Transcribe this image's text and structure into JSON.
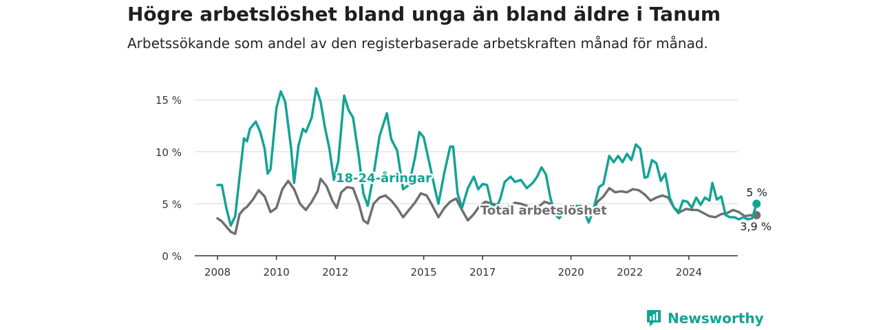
{
  "header": {
    "title": "Högre arbetslöshet bland unga än bland äldre i Tanum",
    "subtitle": "Arbetssökande som andel av den registerbaserade arbetskraften månad för månad."
  },
  "brand": {
    "name": "Newsworthy",
    "icon": "newsworthy-logo-icon",
    "color": "#13a394"
  },
  "chart_data": {
    "type": "line",
    "title": "Högre arbetslöshet bland unga än bland äldre i Tanum",
    "subtitle": "Arbetssökande som andel av den registerbaserade arbetskraften månad för månad.",
    "xlabel": "",
    "ylabel": "",
    "xlim": [
      2007.7,
      2025.5
    ],
    "ylim": [
      0,
      16
    ],
    "yticks": [
      0,
      5,
      10,
      15
    ],
    "ytick_labels": [
      "0 %",
      "5 %",
      "10 %",
      "15 %"
    ],
    "xticks": [
      2008,
      2010,
      2012,
      2015,
      2017,
      2020,
      2022,
      2024
    ],
    "xtick_labels": [
      "2008",
      "2010",
      "2012",
      "2015",
      "2017",
      "2020",
      "2022",
      "2024"
    ],
    "grid": "horizontal",
    "legend": "inline labels",
    "series": [
      {
        "name": "18-24-åringar",
        "color": "#13a394",
        "end_label": "5 %",
        "points": [
          [
            2008.0,
            6.8
          ],
          [
            2008.15,
            6.8
          ],
          [
            2008.3,
            4.6
          ],
          [
            2008.45,
            2.9
          ],
          [
            2008.6,
            3.8
          ],
          [
            2008.75,
            7.6
          ],
          [
            2008.9,
            11.3
          ],
          [
            2009.0,
            11.0
          ],
          [
            2009.1,
            12.2
          ],
          [
            2009.3,
            12.9
          ],
          [
            2009.45,
            11.9
          ],
          [
            2009.6,
            10.3
          ],
          [
            2009.7,
            7.9
          ],
          [
            2009.8,
            8.3
          ],
          [
            2010.0,
            14.2
          ],
          [
            2010.15,
            15.8
          ],
          [
            2010.3,
            14.8
          ],
          [
            2010.5,
            10.3
          ],
          [
            2010.6,
            7.0
          ],
          [
            2010.75,
            10.6
          ],
          [
            2010.9,
            12.2
          ],
          [
            2011.0,
            11.9
          ],
          [
            2011.2,
            13.3
          ],
          [
            2011.35,
            16.1
          ],
          [
            2011.5,
            14.8
          ],
          [
            2011.65,
            12.3
          ],
          [
            2011.8,
            10.3
          ],
          [
            2011.95,
            7.3
          ],
          [
            2012.1,
            9.1
          ],
          [
            2012.3,
            15.4
          ],
          [
            2012.45,
            14.0
          ],
          [
            2012.6,
            13.3
          ],
          [
            2012.8,
            9.5
          ],
          [
            2012.95,
            6.0
          ],
          [
            2013.1,
            4.8
          ],
          [
            2013.3,
            7.8
          ],
          [
            2013.5,
            11.5
          ],
          [
            2013.75,
            13.7
          ],
          [
            2013.9,
            11.2
          ],
          [
            2014.1,
            10.1
          ],
          [
            2014.3,
            6.4
          ],
          [
            2014.5,
            6.8
          ],
          [
            2014.7,
            9.4
          ],
          [
            2014.85,
            11.9
          ],
          [
            2015.0,
            11.4
          ],
          [
            2015.2,
            8.8
          ],
          [
            2015.4,
            6.2
          ],
          [
            2015.5,
            5.0
          ],
          [
            2015.7,
            8.0
          ],
          [
            2015.9,
            10.5
          ],
          [
            2016.0,
            10.5
          ],
          [
            2016.15,
            6.0
          ],
          [
            2016.3,
            4.6
          ],
          [
            2016.5,
            6.5
          ],
          [
            2016.7,
            7.6
          ],
          [
            2016.85,
            6.4
          ],
          [
            2017.0,
            6.9
          ],
          [
            2017.15,
            6.8
          ],
          [
            2017.3,
            5.0
          ],
          [
            2017.45,
            4.5
          ],
          [
            2017.6,
            5.5
          ],
          [
            2017.75,
            7.1
          ],
          [
            2017.95,
            7.6
          ],
          [
            2018.1,
            7.1
          ],
          [
            2018.3,
            7.3
          ],
          [
            2018.5,
            6.5
          ],
          [
            2018.7,
            7.0
          ],
          [
            2018.85,
            7.6
          ],
          [
            2019.0,
            8.5
          ],
          [
            2019.15,
            7.8
          ],
          [
            2019.3,
            5.6
          ],
          [
            2019.45,
            4.0
          ],
          [
            2019.6,
            3.6
          ],
          [
            2019.8,
            4.4
          ],
          [
            2020.0,
            4.2
          ],
          [
            2020.2,
            4.8
          ],
          [
            2020.4,
            4.6
          ],
          [
            2020.6,
            3.2
          ],
          [
            2020.75,
            4.3
          ],
          [
            2020.95,
            6.6
          ],
          [
            2021.1,
            6.9
          ],
          [
            2021.3,
            9.6
          ],
          [
            2021.45,
            9.0
          ],
          [
            2021.6,
            9.6
          ],
          [
            2021.75,
            9.0
          ],
          [
            2021.9,
            9.8
          ],
          [
            2022.05,
            9.2
          ],
          [
            2022.2,
            10.7
          ],
          [
            2022.35,
            10.3
          ],
          [
            2022.5,
            7.5
          ],
          [
            2022.6,
            7.6
          ],
          [
            2022.75,
            9.2
          ],
          [
            2022.9,
            8.9
          ],
          [
            2023.05,
            7.2
          ],
          [
            2023.2,
            7.9
          ],
          [
            2023.35,
            5.6
          ],
          [
            2023.5,
            4.6
          ],
          [
            2023.65,
            4.1
          ],
          [
            2023.8,
            5.3
          ],
          [
            2023.95,
            5.2
          ],
          [
            2024.1,
            4.6
          ],
          [
            2024.25,
            5.6
          ],
          [
            2024.4,
            4.9
          ],
          [
            2024.55,
            5.6
          ],
          [
            2024.7,
            5.3
          ],
          [
            2024.8,
            7.0
          ],
          [
            2024.95,
            5.4
          ],
          [
            2025.1,
            5.7
          ],
          [
            2025.25,
            3.9
          ],
          [
            2025.4,
            3.7
          ],
          [
            2025.55,
            3.7
          ],
          [
            2025.7,
            3.5
          ],
          [
            2025.85,
            3.7
          ],
          [
            2026.0,
            3.5
          ],
          [
            2026.15,
            3.6
          ],
          [
            2026.3,
            5.0
          ]
        ]
      },
      {
        "name": "Total arbetslöshet",
        "color": "#6e6e73",
        "end_label": "3,9 %",
        "points": [
          [
            2008.0,
            3.6
          ],
          [
            2008.15,
            3.3
          ],
          [
            2008.3,
            2.8
          ],
          [
            2008.45,
            2.3
          ],
          [
            2008.6,
            2.1
          ],
          [
            2008.75,
            4.0
          ],
          [
            2008.9,
            4.5
          ],
          [
            2009.0,
            4.7
          ],
          [
            2009.2,
            5.4
          ],
          [
            2009.4,
            6.3
          ],
          [
            2009.6,
            5.7
          ],
          [
            2009.8,
            4.2
          ],
          [
            2010.0,
            4.6
          ],
          [
            2010.2,
            6.4
          ],
          [
            2010.4,
            7.2
          ],
          [
            2010.6,
            6.4
          ],
          [
            2010.8,
            5.0
          ],
          [
            2011.0,
            4.4
          ],
          [
            2011.2,
            5.2
          ],
          [
            2011.4,
            6.2
          ],
          [
            2011.5,
            7.4
          ],
          [
            2011.7,
            6.7
          ],
          [
            2011.9,
            5.3
          ],
          [
            2012.05,
            4.6
          ],
          [
            2012.2,
            6.1
          ],
          [
            2012.4,
            6.6
          ],
          [
            2012.6,
            6.5
          ],
          [
            2012.8,
            5.0
          ],
          [
            2012.95,
            3.4
          ],
          [
            2013.1,
            3.1
          ],
          [
            2013.3,
            5.0
          ],
          [
            2013.5,
            5.6
          ],
          [
            2013.7,
            5.8
          ],
          [
            2013.9,
            5.3
          ],
          [
            2014.1,
            4.6
          ],
          [
            2014.3,
            3.7
          ],
          [
            2014.5,
            4.4
          ],
          [
            2014.7,
            5.1
          ],
          [
            2014.9,
            6.0
          ],
          [
            2015.1,
            5.8
          ],
          [
            2015.3,
            4.8
          ],
          [
            2015.5,
            3.7
          ],
          [
            2015.7,
            4.6
          ],
          [
            2015.9,
            5.2
          ],
          [
            2016.1,
            5.5
          ],
          [
            2016.3,
            4.4
          ],
          [
            2016.5,
            3.4
          ],
          [
            2016.7,
            4.0
          ],
          [
            2016.9,
            4.8
          ],
          [
            2017.1,
            5.2
          ],
          [
            2017.3,
            5.0
          ],
          [
            2017.5,
            4.9
          ],
          [
            2017.7,
            4.6
          ],
          [
            2017.9,
            4.7
          ],
          [
            2018.1,
            5.1
          ],
          [
            2018.3,
            5.0
          ],
          [
            2018.5,
            4.8
          ],
          [
            2018.7,
            4.4
          ],
          [
            2018.9,
            4.7
          ],
          [
            2019.1,
            5.2
          ],
          [
            2019.3,
            5.0
          ],
          [
            2019.5,
            4.5
          ],
          [
            2019.7,
            4.1
          ],
          [
            2019.9,
            4.4
          ],
          [
            2020.1,
            4.6
          ],
          [
            2020.3,
            4.8
          ],
          [
            2020.5,
            4.5
          ],
          [
            2020.7,
            4.0
          ],
          [
            2020.9,
            5.2
          ],
          [
            2021.1,
            5.7
          ],
          [
            2021.3,
            6.5
          ],
          [
            2021.5,
            6.1
          ],
          [
            2021.7,
            6.2
          ],
          [
            2021.9,
            6.1
          ],
          [
            2022.1,
            6.4
          ],
          [
            2022.3,
            6.3
          ],
          [
            2022.5,
            5.9
          ],
          [
            2022.7,
            5.3
          ],
          [
            2022.9,
            5.6
          ],
          [
            2023.1,
            5.8
          ],
          [
            2023.3,
            5.6
          ],
          [
            2023.5,
            4.6
          ],
          [
            2023.7,
            4.2
          ],
          [
            2023.9,
            4.5
          ],
          [
            2024.1,
            4.4
          ],
          [
            2024.3,
            4.4
          ],
          [
            2024.5,
            4.1
          ],
          [
            2024.7,
            3.8
          ],
          [
            2024.9,
            3.7
          ],
          [
            2025.1,
            4.0
          ],
          [
            2025.3,
            4.1
          ],
          [
            2025.5,
            4.4
          ],
          [
            2025.7,
            4.2
          ],
          [
            2025.9,
            3.8
          ],
          [
            2026.1,
            3.9
          ],
          [
            2026.3,
            3.9
          ]
        ]
      }
    ]
  }
}
